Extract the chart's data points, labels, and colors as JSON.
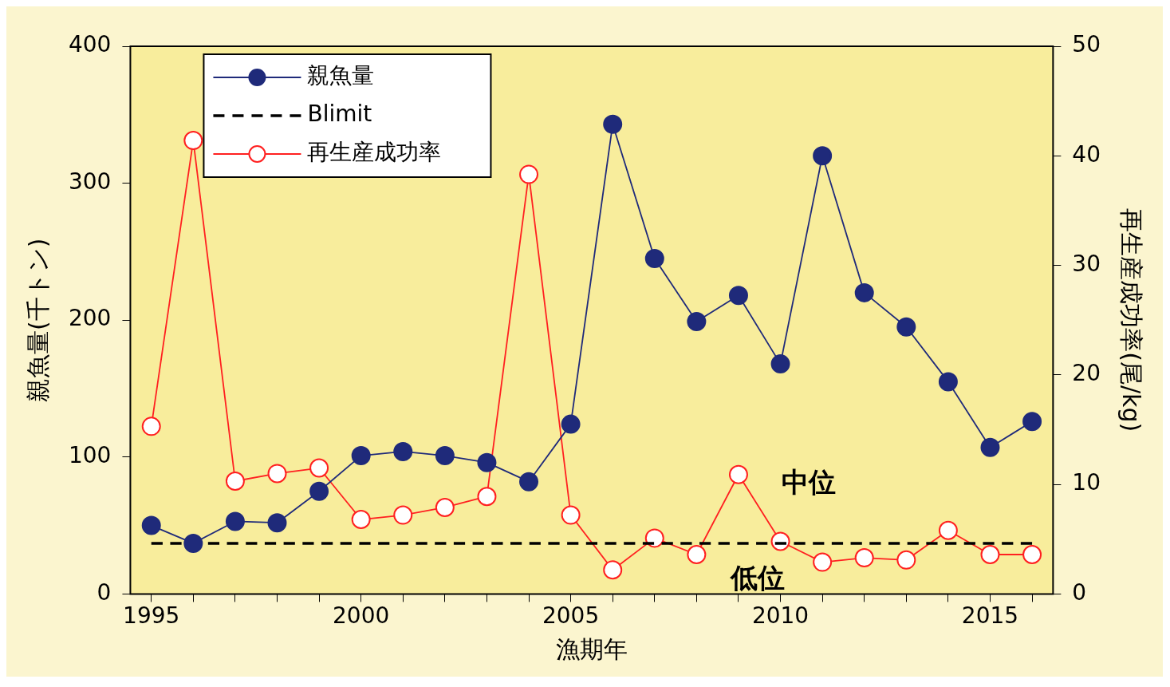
{
  "chart_data": {
    "type": "line",
    "xlabel": "漁期年",
    "ylabel": "親魚量(千トン)",
    "y2label": "再生産成功率(尾/kg)",
    "x": [
      1995,
      1996,
      1997,
      1998,
      1999,
      2000,
      2001,
      2002,
      2003,
      2004,
      2005,
      2006,
      2007,
      2008,
      2009,
      2010,
      2011,
      2012,
      2013,
      2014,
      2015,
      2016
    ],
    "xlim": [
      1994.5,
      2016.5
    ],
    "xticks": [
      1995,
      {
        "value": 1996,
        "label": null
      },
      {
        "value": 1997,
        "label": null
      },
      {
        "value": 1998,
        "label": null
      },
      {
        "value": 1999,
        "label": null
      },
      2000,
      {
        "value": 2001,
        "label": null
      },
      {
        "value": 2002,
        "label": null
      },
      {
        "value": 2003,
        "label": null
      },
      {
        "value": 2004,
        "label": null
      },
      2005,
      {
        "value": 2006,
        "label": null
      },
      {
        "value": 2007,
        "label": null
      },
      {
        "value": 2008,
        "label": null
      },
      {
        "value": 2009,
        "label": null
      },
      2010,
      {
        "value": 2011,
        "label": null
      },
      {
        "value": 2012,
        "label": null
      },
      {
        "value": 2013,
        "label": null
      },
      {
        "value": 2014,
        "label": null
      },
      2015,
      {
        "value": 2016,
        "label": null
      }
    ],
    "ylim": [
      0,
      400
    ],
    "yticks": [
      0,
      100,
      200,
      300,
      400
    ],
    "y2lim": [
      0,
      50
    ],
    "y2ticks": [
      0,
      10,
      20,
      30,
      40,
      50
    ],
    "series": [
      {
        "name": "親魚量",
        "color": "#1f2a7a",
        "marker": "circle",
        "values": [
          50,
          37,
          53,
          52,
          75,
          101,
          104,
          101,
          96,
          82,
          124,
          343,
          245,
          199,
          218,
          168,
          320,
          220,
          195,
          155,
          107,
          126
        ]
      },
      {
        "name": "Blimit",
        "color": "#000000",
        "marker": "none",
        "line_style": "dashed",
        "x": [
          1995,
          2016
        ],
        "values": [
          37,
          37
        ]
      },
      {
        "name": "再生産成功率",
        "color": "#ff2020",
        "marker": "circle",
        "axis": "y2",
        "values": [
          15.3,
          41.4,
          10.3,
          11.0,
          11.5,
          6.8,
          7.2,
          7.9,
          8.9,
          38.3,
          7.2,
          2.2,
          5.1,
          3.6,
          10.9,
          4.8,
          2.9,
          3.3,
          3.1,
          5.8,
          3.6,
          3.6
        ]
      }
    ],
    "annotations": [
      "中位",
      "低位"
    ],
    "legend": "top left",
    "grid": false
  }
}
